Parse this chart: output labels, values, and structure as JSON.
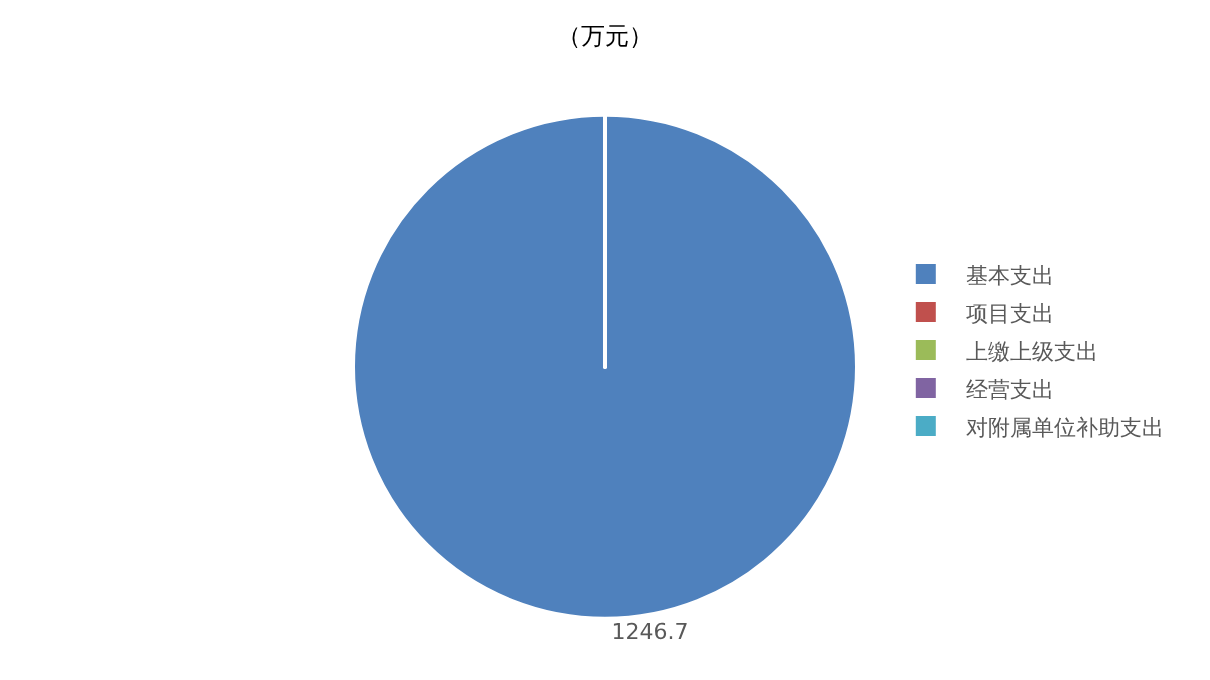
{
  "chart_data": {
    "type": "pie",
    "title": "（万元）",
    "categories": [
      "基本支出",
      "项目支出",
      "上缴上级支出",
      "经营支出",
      "对附属单位补助支出"
    ],
    "values": [
      1246.7,
      0,
      0,
      0,
      0
    ],
    "colors": [
      "#4f81bd",
      "#c0504d",
      "#9bbb59",
      "#8064a2",
      "#4bacc6"
    ],
    "value_labels": [
      "1246.7",
      null,
      null,
      null,
      null
    ],
    "legend": "right"
  }
}
